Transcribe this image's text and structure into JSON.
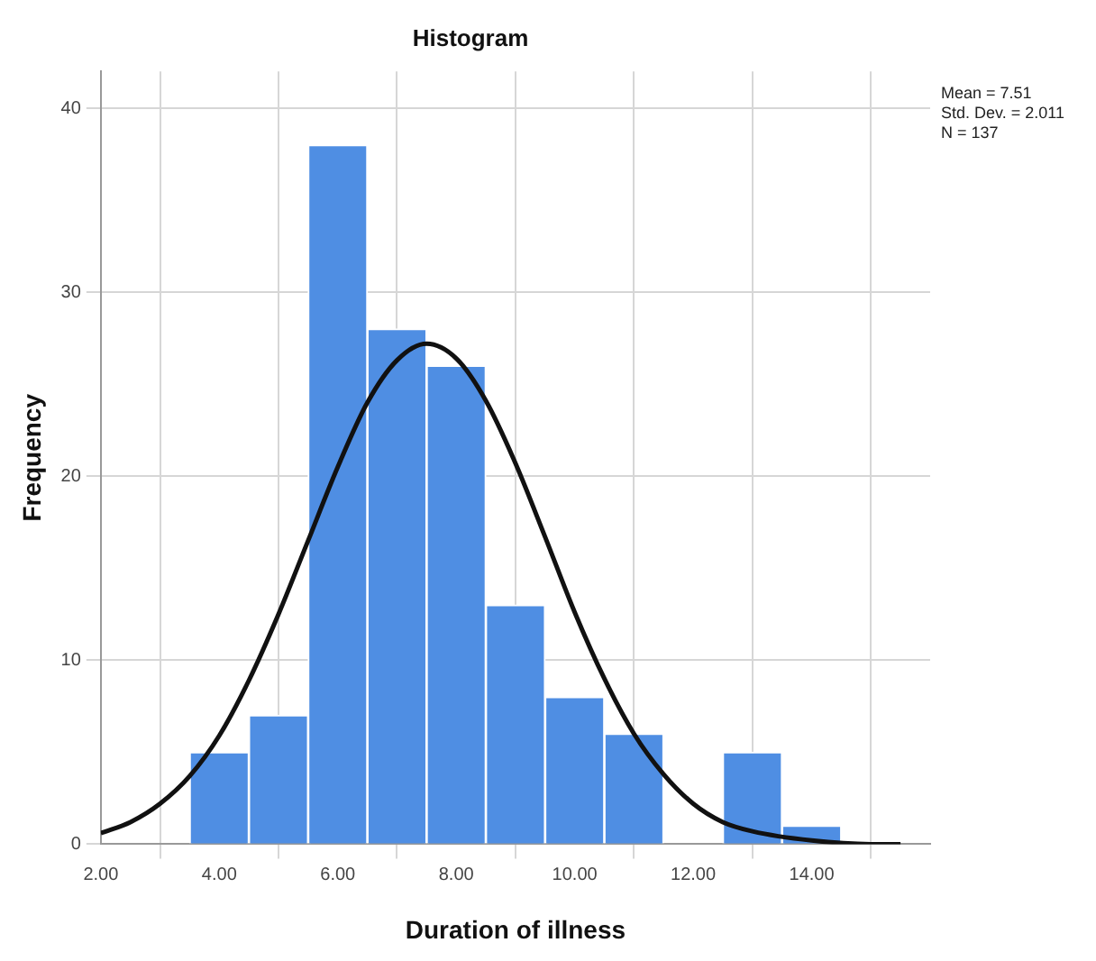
{
  "chart_data": {
    "type": "histogram",
    "title": "Histogram",
    "xlabel": "Duration of illness",
    "ylabel": "Frequency",
    "bins": [
      3.5,
      4.5,
      5.5,
      6.5,
      7.5,
      8.5,
      9.5,
      10.5,
      11.5,
      12.5,
      13.5,
      14.5
    ],
    "values": [
      5,
      7,
      38,
      28,
      26,
      13,
      8,
      6,
      0,
      5,
      1
    ],
    "color": "#4f8ee3",
    "series": [
      {
        "type": "line",
        "color": "#111111",
        "x": [
          2,
          2.5,
          3,
          3.5,
          4,
          4.5,
          5,
          5.5,
          6,
          6.5,
          7,
          7.5,
          8,
          8.5,
          9,
          9.5,
          10,
          10.5,
          11,
          11.5,
          12,
          12.5,
          13,
          14,
          15,
          15.5
        ],
        "values": [
          0.6,
          1.2,
          2.2,
          3.7,
          5.9,
          8.9,
          12.5,
          16.5,
          20.5,
          24,
          26.3,
          27.2,
          26.4,
          24.1,
          20.7,
          16.7,
          12.6,
          9,
          6,
          3.8,
          2.2,
          1.2,
          0.7,
          0.2,
          0,
          0
        ]
      }
    ],
    "xlim": [
      2,
      16
    ],
    "xticks": [
      {
        "value": 2,
        "label": "2.00"
      },
      {
        "value": 4,
        "label": "4.00"
      },
      {
        "value": 6,
        "label": "6.00"
      },
      {
        "value": 8,
        "label": "8.00"
      },
      {
        "value": 10,
        "label": "10.00"
      },
      {
        "value": 12,
        "label": "12.00"
      },
      {
        "value": 14,
        "label": "14.00"
      }
    ],
    "ylim": [
      0,
      42
    ],
    "yticks": [
      0,
      10,
      20,
      30,
      40
    ],
    "grid": true,
    "legend": false,
    "marker": "none",
    "line_style": "solid",
    "annotations": [
      "Mean = 7.51",
      "Std. Dev. = 2.011",
      "N = 137"
    ]
  }
}
